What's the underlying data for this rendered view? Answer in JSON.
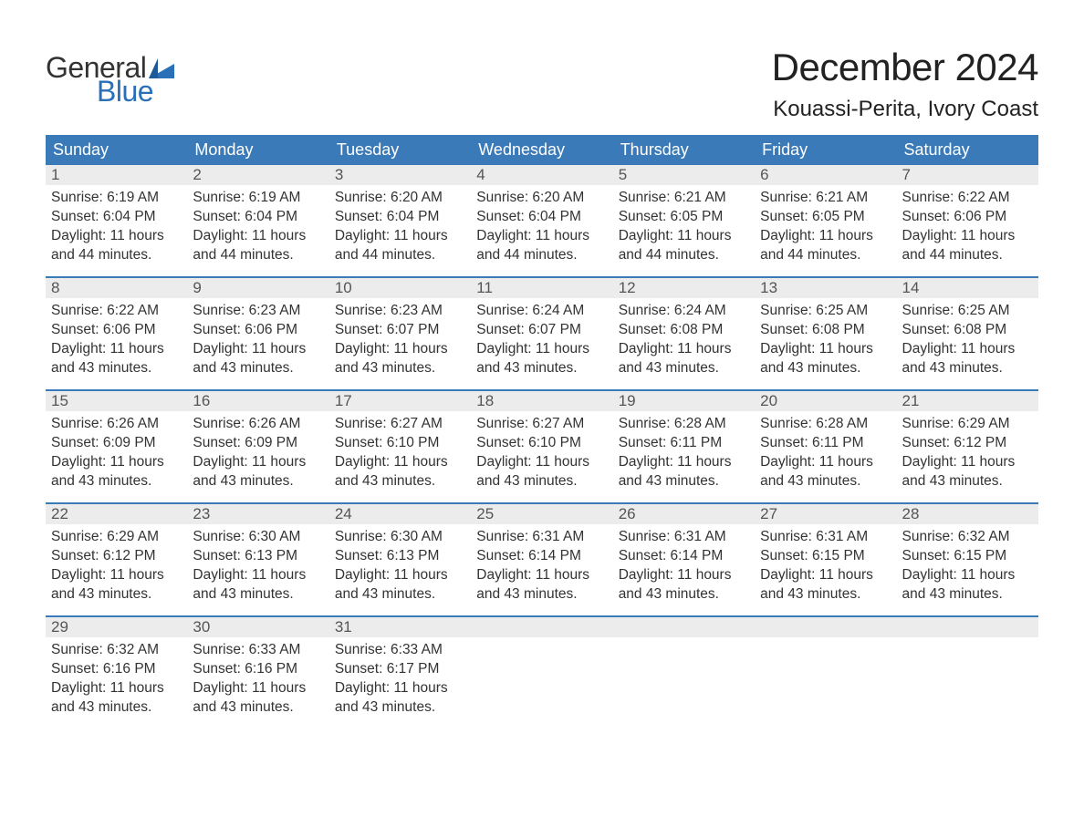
{
  "logo": {
    "word1": "General",
    "word2": "Blue",
    "word1_color": "#333333",
    "word2_color": "#2970b8"
  },
  "title": "December 2024",
  "location": "Kouassi-Perita, Ivory Coast",
  "colors": {
    "header_bg": "#3a7ab8",
    "header_text": "#ffffff",
    "week_border": "#3a7ab8",
    "daynum_bg": "#ececec",
    "daynum_text": "#555555",
    "body_text": "#333333",
    "page_bg": "#ffffff"
  },
  "fonts": {
    "title_size": 42,
    "location_size": 24,
    "header_size": 18,
    "daynum_size": 17,
    "body_size": 15.5
  },
  "layout": {
    "columns": 7,
    "rows": 5,
    "cell_min_height": 122
  },
  "day_headers": [
    "Sunday",
    "Monday",
    "Tuesday",
    "Wednesday",
    "Thursday",
    "Friday",
    "Saturday"
  ],
  "labels": {
    "sunrise": "Sunrise:",
    "sunset": "Sunset:",
    "daylight": "Daylight:"
  },
  "weeks": [
    [
      {
        "n": "1",
        "sunrise": "6:19 AM",
        "sunset": "6:04 PM",
        "daylight": "11 hours and 44 minutes."
      },
      {
        "n": "2",
        "sunrise": "6:19 AM",
        "sunset": "6:04 PM",
        "daylight": "11 hours and 44 minutes."
      },
      {
        "n": "3",
        "sunrise": "6:20 AM",
        "sunset": "6:04 PM",
        "daylight": "11 hours and 44 minutes."
      },
      {
        "n": "4",
        "sunrise": "6:20 AM",
        "sunset": "6:04 PM",
        "daylight": "11 hours and 44 minutes."
      },
      {
        "n": "5",
        "sunrise": "6:21 AM",
        "sunset": "6:05 PM",
        "daylight": "11 hours and 44 minutes."
      },
      {
        "n": "6",
        "sunrise": "6:21 AM",
        "sunset": "6:05 PM",
        "daylight": "11 hours and 44 minutes."
      },
      {
        "n": "7",
        "sunrise": "6:22 AM",
        "sunset": "6:06 PM",
        "daylight": "11 hours and 44 minutes."
      }
    ],
    [
      {
        "n": "8",
        "sunrise": "6:22 AM",
        "sunset": "6:06 PM",
        "daylight": "11 hours and 43 minutes."
      },
      {
        "n": "9",
        "sunrise": "6:23 AM",
        "sunset": "6:06 PM",
        "daylight": "11 hours and 43 minutes."
      },
      {
        "n": "10",
        "sunrise": "6:23 AM",
        "sunset": "6:07 PM",
        "daylight": "11 hours and 43 minutes."
      },
      {
        "n": "11",
        "sunrise": "6:24 AM",
        "sunset": "6:07 PM",
        "daylight": "11 hours and 43 minutes."
      },
      {
        "n": "12",
        "sunrise": "6:24 AM",
        "sunset": "6:08 PM",
        "daylight": "11 hours and 43 minutes."
      },
      {
        "n": "13",
        "sunrise": "6:25 AM",
        "sunset": "6:08 PM",
        "daylight": "11 hours and 43 minutes."
      },
      {
        "n": "14",
        "sunrise": "6:25 AM",
        "sunset": "6:08 PM",
        "daylight": "11 hours and 43 minutes."
      }
    ],
    [
      {
        "n": "15",
        "sunrise": "6:26 AM",
        "sunset": "6:09 PM",
        "daylight": "11 hours and 43 minutes."
      },
      {
        "n": "16",
        "sunrise": "6:26 AM",
        "sunset": "6:09 PM",
        "daylight": "11 hours and 43 minutes."
      },
      {
        "n": "17",
        "sunrise": "6:27 AM",
        "sunset": "6:10 PM",
        "daylight": "11 hours and 43 minutes."
      },
      {
        "n": "18",
        "sunrise": "6:27 AM",
        "sunset": "6:10 PM",
        "daylight": "11 hours and 43 minutes."
      },
      {
        "n": "19",
        "sunrise": "6:28 AM",
        "sunset": "6:11 PM",
        "daylight": "11 hours and 43 minutes."
      },
      {
        "n": "20",
        "sunrise": "6:28 AM",
        "sunset": "6:11 PM",
        "daylight": "11 hours and 43 minutes."
      },
      {
        "n": "21",
        "sunrise": "6:29 AM",
        "sunset": "6:12 PM",
        "daylight": "11 hours and 43 minutes."
      }
    ],
    [
      {
        "n": "22",
        "sunrise": "6:29 AM",
        "sunset": "6:12 PM",
        "daylight": "11 hours and 43 minutes."
      },
      {
        "n": "23",
        "sunrise": "6:30 AM",
        "sunset": "6:13 PM",
        "daylight": "11 hours and 43 minutes."
      },
      {
        "n": "24",
        "sunrise": "6:30 AM",
        "sunset": "6:13 PM",
        "daylight": "11 hours and 43 minutes."
      },
      {
        "n": "25",
        "sunrise": "6:31 AM",
        "sunset": "6:14 PM",
        "daylight": "11 hours and 43 minutes."
      },
      {
        "n": "26",
        "sunrise": "6:31 AM",
        "sunset": "6:14 PM",
        "daylight": "11 hours and 43 minutes."
      },
      {
        "n": "27",
        "sunrise": "6:31 AM",
        "sunset": "6:15 PM",
        "daylight": "11 hours and 43 minutes."
      },
      {
        "n": "28",
        "sunrise": "6:32 AM",
        "sunset": "6:15 PM",
        "daylight": "11 hours and 43 minutes."
      }
    ],
    [
      {
        "n": "29",
        "sunrise": "6:32 AM",
        "sunset": "6:16 PM",
        "daylight": "11 hours and 43 minutes."
      },
      {
        "n": "30",
        "sunrise": "6:33 AM",
        "sunset": "6:16 PM",
        "daylight": "11 hours and 43 minutes."
      },
      {
        "n": "31",
        "sunrise": "6:33 AM",
        "sunset": "6:17 PM",
        "daylight": "11 hours and 43 minutes."
      },
      null,
      null,
      null,
      null
    ]
  ]
}
